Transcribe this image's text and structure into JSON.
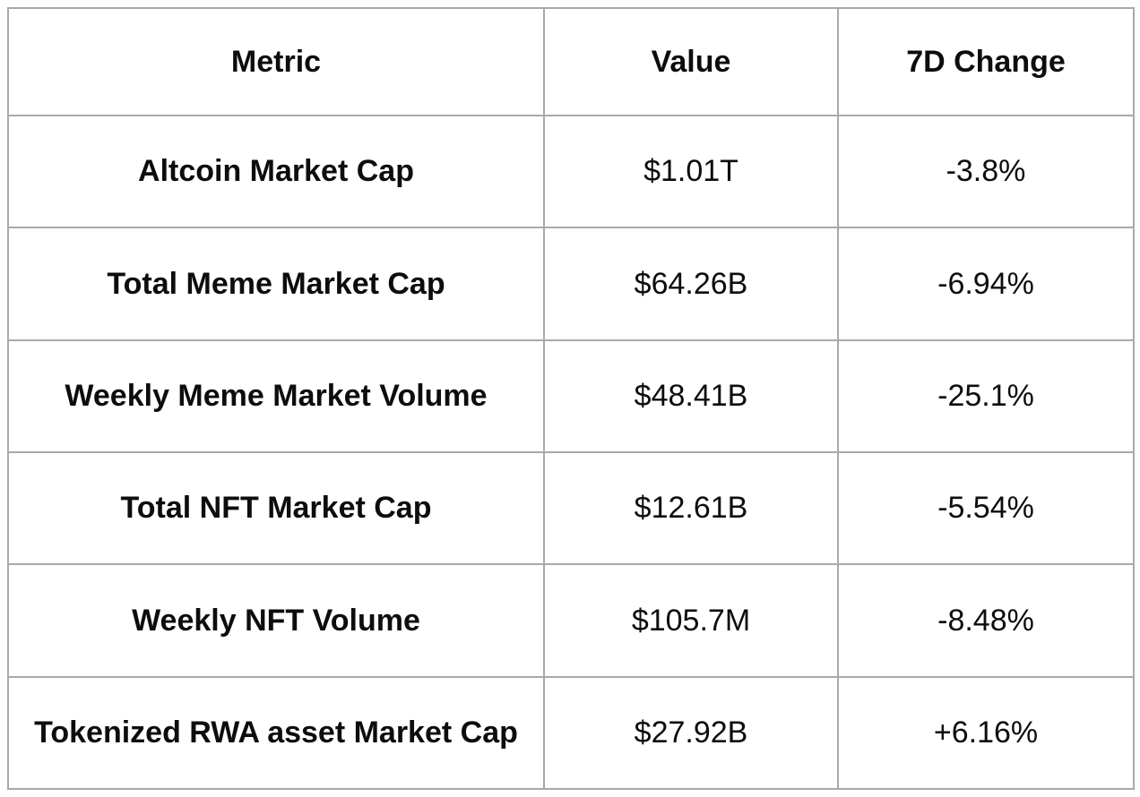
{
  "colors": {
    "background": "#ffffff",
    "border": "#a9a9a9",
    "text": "#0d0d0d"
  },
  "table": {
    "headers": {
      "metric": "Metric",
      "value": "Value",
      "change": "7D Change"
    },
    "rows": [
      {
        "metric": "Altcoin Market Cap",
        "value": "$1.01T",
        "change": "-3.8%"
      },
      {
        "metric": "Total Meme Market Cap",
        "value": "$64.26B",
        "change": "-6.94%"
      },
      {
        "metric": "Weekly Meme Market Volume",
        "value": "$48.41B",
        "change": "-25.1%"
      },
      {
        "metric": "Total NFT Market Cap",
        "value": "$12.61B",
        "change": "-5.54%"
      },
      {
        "metric": "Weekly NFT Volume",
        "value": "$105.7M",
        "change": "-8.48%"
      },
      {
        "metric": "Tokenized RWA asset Market Cap",
        "value": "$27.92B",
        "change": "+6.16%"
      }
    ]
  },
  "chart_data": {
    "type": "table",
    "title": "",
    "columns": [
      "Metric",
      "Value",
      "7D Change"
    ],
    "rows": [
      [
        "Altcoin Market Cap",
        "$1.01T",
        "-3.8%"
      ],
      [
        "Total Meme Market Cap",
        "$64.26B",
        "-6.94%"
      ],
      [
        "Weekly Meme Market Volume",
        "$48.41B",
        "-25.1%"
      ],
      [
        "Total NFT Market Cap",
        "$12.61B",
        "-5.54%"
      ],
      [
        "Weekly NFT Volume",
        "$105.7M",
        "-8.48%"
      ],
      [
        "Tokenized RWA asset Market Cap",
        "$27.92B",
        "+6.16%"
      ]
    ]
  }
}
